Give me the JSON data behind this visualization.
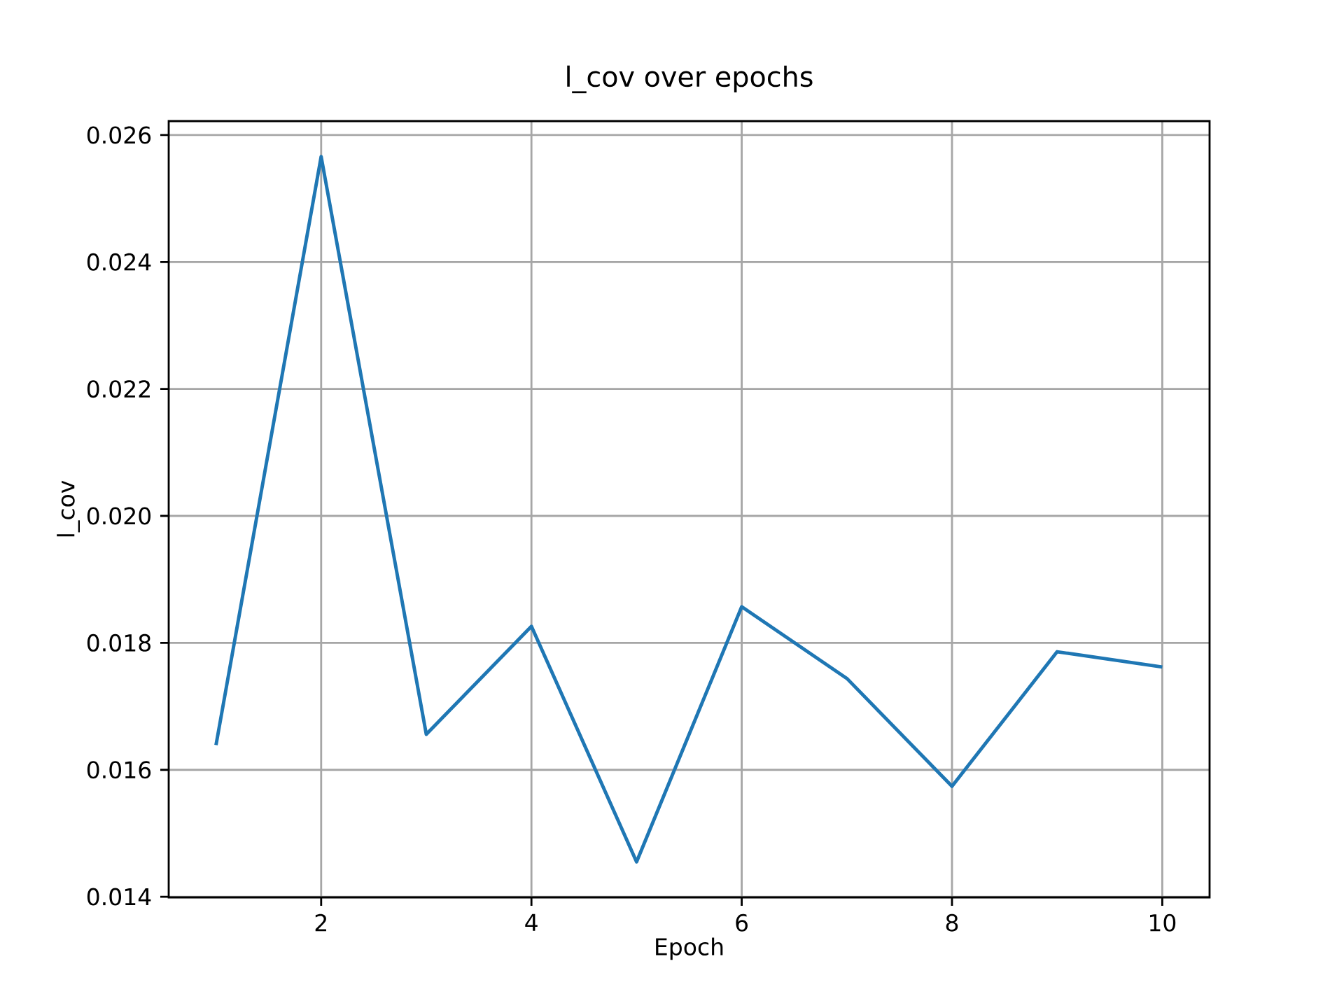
{
  "chart_data": {
    "type": "line",
    "title": "l_cov over epochs",
    "xlabel": "Epoch",
    "ylabel": "l_cov",
    "x": [
      1,
      2,
      3,
      4,
      5,
      6,
      7,
      8,
      9,
      10
    ],
    "series": [
      {
        "color": "#1f77b4",
        "values": [
          0.01639,
          0.02566,
          0.01656,
          0.01826,
          0.01455,
          0.01857,
          0.01744,
          0.01574,
          0.01786,
          0.01762
        ]
      }
    ],
    "xlim": [
      0.55,
      10.45
    ],
    "ylim": [
      0.01399,
      0.02622
    ],
    "xticks": [
      2,
      4,
      6,
      8,
      10
    ],
    "yticks": [
      0.014,
      0.016,
      0.018,
      {
        "value": 0.02,
        "label": "0.020"
      },
      0.022,
      0.024,
      0.026
    ],
    "grid": true,
    "marker": "none",
    "line_style": "solid"
  }
}
